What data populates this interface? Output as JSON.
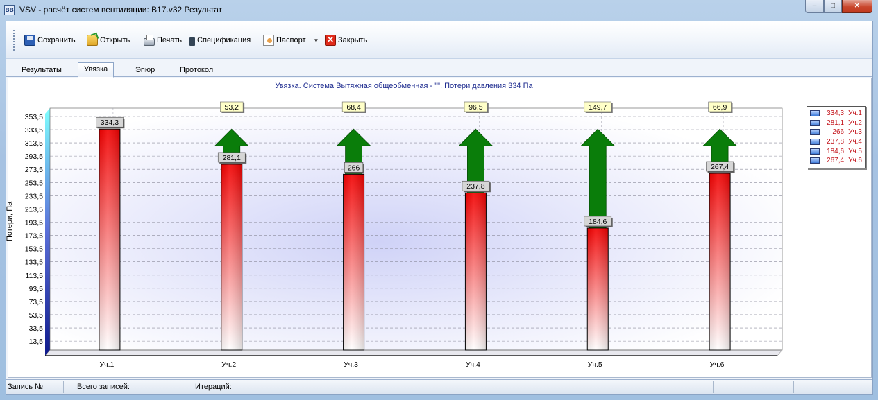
{
  "window": {
    "title": "VSV - расчёт систем вентиляции: B17.v32 Результат",
    "app_icon": "вв",
    "controls": {
      "minimize": "–",
      "maximize": "□",
      "close": "✕"
    }
  },
  "toolbar": {
    "save_label": "Сохранить",
    "open_label": "Открыть",
    "print_label": "Печать",
    "spec_label": "Спецификация",
    "passport_label": "Паспорт",
    "passport_dropdown": "▼",
    "close_label": "Закрыть",
    "close_glyph": "✕",
    "icons": [
      "save-icon",
      "open-icon",
      "print-icon",
      "spec-icon",
      "passport-icon",
      "close-icon"
    ]
  },
  "tabs": [
    {
      "label": "Результаты"
    },
    {
      "label": "Увязка",
      "active": true
    },
    {
      "label": "Эпюр"
    },
    {
      "label": "Протокол"
    }
  ],
  "status": {
    "record_label": "Запись №",
    "total_label": "Всего записей:",
    "iter_label": "Итераций:"
  },
  "chart_data": {
    "type": "bar",
    "title": "Увязка. Система Вытяжная общеобменная - \"\". Потери давления 334 Па",
    "ylabel": "Потери, Па",
    "xlabel": "",
    "ylim": [
      0,
      366
    ],
    "yticks": [
      "13,5",
      "33,5",
      "53,5",
      "73,5",
      "93,5",
      "113,5",
      "133,5",
      "153,5",
      "173,5",
      "193,5",
      "213,5",
      "233,5",
      "253,5",
      "273,5",
      "293,5",
      "313,5",
      "333,5",
      "353,5"
    ],
    "categories": [
      "Уч.1",
      "Уч.2",
      "Уч.3",
      "Уч.4",
      "Уч.5",
      "Уч.6"
    ],
    "values": [
      334.3,
      281.1,
      266,
      237.8,
      184.6,
      267.4
    ],
    "value_labels": [
      "334,3",
      "281,1",
      "266",
      "237,8",
      "184,6",
      "267,4"
    ],
    "balance": [
      null,
      53.2,
      68.4,
      96.5,
      149.7,
      66.9
    ],
    "balance_labels": [
      "",
      "53,2",
      "68,4",
      "96,5",
      "149,7",
      "66,9"
    ],
    "legend": [
      {
        "value": "334,3",
        "name": "Уч.1"
      },
      {
        "value": "281,1",
        "name": "Уч.2"
      },
      {
        "value": "266",
        "name": "Уч.3"
      },
      {
        "value": "237,8",
        "name": "Уч.4"
      },
      {
        "value": "184,6",
        "name": "Уч.5"
      },
      {
        "value": "267,4",
        "name": "Уч.6"
      }
    ],
    "legend_position": "right",
    "grid": true,
    "colors": {
      "bar_top": "#f20000",
      "bar_bottom": "#ffffff",
      "arrow": "#0a7d0a",
      "axis_side": "#0f1a8c",
      "label_bg": "#d6d6d6",
      "balance_bg": "#ffffc8"
    }
  }
}
